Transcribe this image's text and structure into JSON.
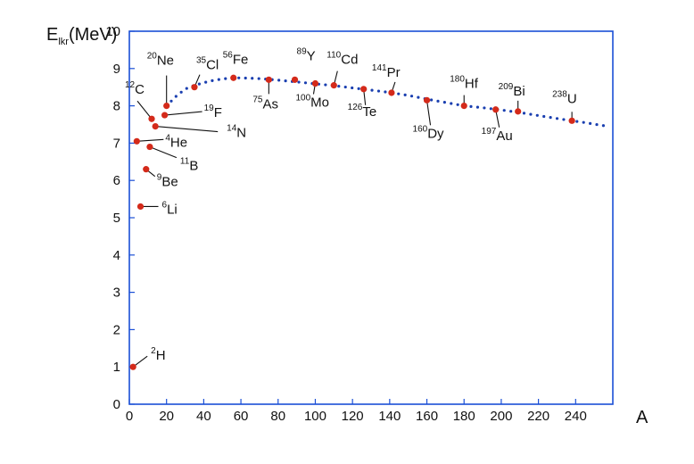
{
  "chart_data": {
    "type": "scatter",
    "ylabel_main": "E",
    "ylabel_sub": "lkr",
    "ylabel_unit": "(MeV)",
    "xlabel": "A",
    "xlim": [
      0,
      260
    ],
    "ylim": [
      0,
      10
    ],
    "x_ticks": [
      "0",
      "20",
      "40",
      "60",
      "80",
      "100",
      "120",
      "140",
      "160",
      "180",
      "200",
      "220",
      "240"
    ],
    "y_ticks": [
      "0",
      "1",
      "2",
      "3",
      "4",
      "5",
      "6",
      "7",
      "8",
      "9",
      "10"
    ],
    "points": [
      {
        "A": 2,
        "E": 1.0,
        "mass": "2",
        "symbol": "H"
      },
      {
        "A": 6,
        "E": 5.3,
        "mass": "6",
        "symbol": "Li"
      },
      {
        "A": 9,
        "E": 6.3,
        "mass": "9",
        "symbol": "Be"
      },
      {
        "A": 4,
        "E": 7.05,
        "mass": "4",
        "symbol": "He"
      },
      {
        "A": 11,
        "E": 6.9,
        "mass": "11",
        "symbol": "B"
      },
      {
        "A": 12,
        "E": 7.65,
        "mass": "12",
        "symbol": "C"
      },
      {
        "A": 14,
        "E": 7.45,
        "mass": "14",
        "symbol": "N"
      },
      {
        "A": 19,
        "E": 7.75,
        "mass": "19",
        "symbol": "F"
      },
      {
        "A": 20,
        "E": 8.0,
        "mass": "20",
        "symbol": "Ne"
      },
      {
        "A": 35,
        "E": 8.5,
        "mass": "35",
        "symbol": "Cl"
      },
      {
        "A": 56,
        "E": 8.75,
        "mass": "56",
        "symbol": "Fe"
      },
      {
        "A": 75,
        "E": 8.7,
        "mass": "75",
        "symbol": "As"
      },
      {
        "A": 89,
        "E": 8.7,
        "mass": "89",
        "symbol": "Y"
      },
      {
        "A": 100,
        "E": 8.6,
        "mass": "100",
        "symbol": "Mo"
      },
      {
        "A": 110,
        "E": 8.55,
        "mass": "110",
        "symbol": "Cd"
      },
      {
        "A": 126,
        "E": 8.45,
        "mass": "126",
        "symbol": "Te"
      },
      {
        "A": 141,
        "E": 8.35,
        "mass": "141",
        "symbol": "Pr"
      },
      {
        "A": 160,
        "E": 8.15,
        "mass": "160",
        "symbol": "Dy"
      },
      {
        "A": 180,
        "E": 8.0,
        "mass": "180",
        "symbol": "Hf"
      },
      {
        "A": 197,
        "E": 7.9,
        "mass": "197",
        "symbol": "Au"
      },
      {
        "A": 209,
        "E": 7.85,
        "mass": "209",
        "symbol": "Bi"
      },
      {
        "A": 238,
        "E": 7.6,
        "mass": "238",
        "symbol": "U"
      }
    ],
    "trend_curve": [
      [
        20,
        8.0
      ],
      [
        25,
        8.25
      ],
      [
        30,
        8.45
      ],
      [
        35,
        8.55
      ],
      [
        40,
        8.62
      ],
      [
        45,
        8.68
      ],
      [
        50,
        8.72
      ],
      [
        56,
        8.75
      ],
      [
        60,
        8.75
      ],
      [
        70,
        8.73
      ],
      [
        80,
        8.69
      ],
      [
        90,
        8.64
      ],
      [
        100,
        8.59
      ],
      [
        110,
        8.54
      ],
      [
        120,
        8.48
      ],
      [
        130,
        8.42
      ],
      [
        140,
        8.36
      ],
      [
        150,
        8.28
      ],
      [
        160,
        8.18
      ],
      [
        170,
        8.09
      ],
      [
        180,
        8.0
      ],
      [
        190,
        7.95
      ],
      [
        200,
        7.89
      ],
      [
        210,
        7.82
      ],
      [
        220,
        7.74
      ],
      [
        230,
        7.66
      ],
      [
        238,
        7.6
      ],
      [
        245,
        7.55
      ],
      [
        255,
        7.47
      ]
    ],
    "point_color": "#d42a1a",
    "curve_color": "#1a3fb0",
    "frame_color": "#1a4fd6",
    "grid": false
  }
}
